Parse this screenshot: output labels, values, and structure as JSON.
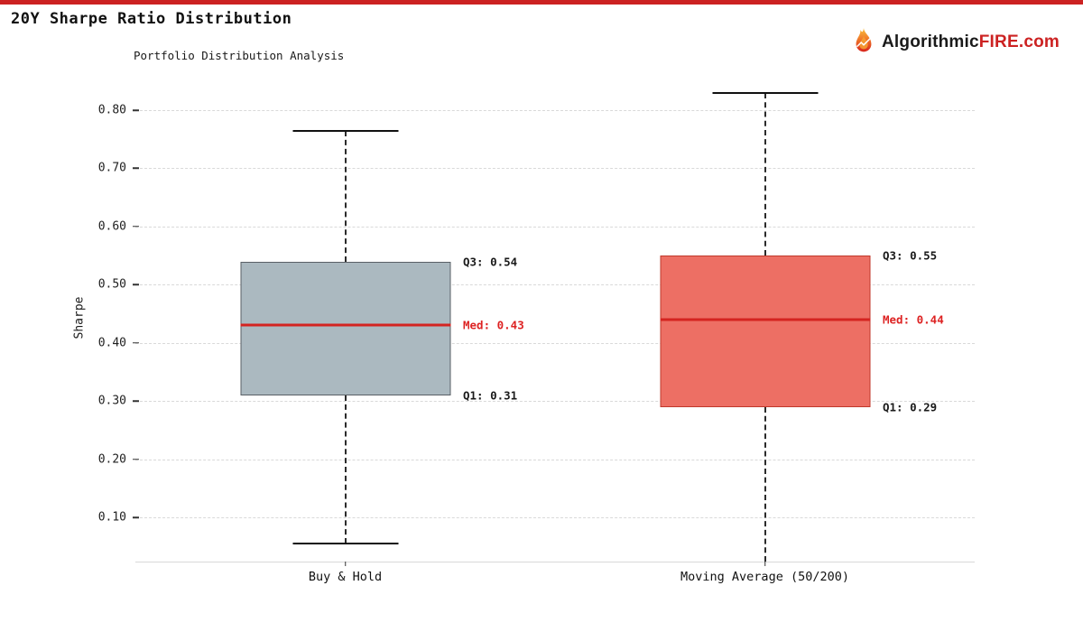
{
  "page": {
    "title": "20Y Sharpe Ratio Distribution",
    "top_bar_color": "#cc2222"
  },
  "logo": {
    "text_black": "Algorithmic",
    "text_red": "FIRE",
    "text_suffix": ".com",
    "color_black": "#1a1a1a",
    "color_red": "#cc2222"
  },
  "chart_data": {
    "type": "boxplot",
    "title": "Portfolio Distribution Analysis",
    "ylabel": "Sharpe",
    "xlabel": "",
    "grid": "horizontal-dashed",
    "legend": "none",
    "ylim_visible": [
      0.024,
      0.845
    ],
    "yticks": [
      "0.10",
      "0.20",
      "0.30",
      "0.40",
      "0.50",
      "0.60",
      "0.70",
      "0.80"
    ],
    "categories": [
      "Buy & Hold",
      "Moving Average (50/200)"
    ],
    "median_color": "#d42420",
    "series": [
      {
        "name": "Buy & Hold",
        "whisker_high": 0.765,
        "q3": 0.54,
        "median": 0.43,
        "q1": 0.31,
        "whisker_low": 0.055,
        "whisker_low_clipped": false,
        "box_fill": "#abb9c0",
        "box_border": "#5a6066",
        "labels": {
          "q3": "Q3: 0.54",
          "median": "Med: 0.43",
          "q1": "Q1: 0.31"
        }
      },
      {
        "name": "Moving Average (50/200)",
        "whisker_high": 0.83,
        "q3": 0.55,
        "median": 0.44,
        "q1": 0.29,
        "whisker_low": 0.02,
        "whisker_low_clipped": true,
        "box_fill": "#ed6f64",
        "box_border": "#c0392b",
        "labels": {
          "q3": "Q3: 0.55",
          "median": "Med: 0.44",
          "q1": "Q1: 0.29"
        }
      }
    ]
  }
}
